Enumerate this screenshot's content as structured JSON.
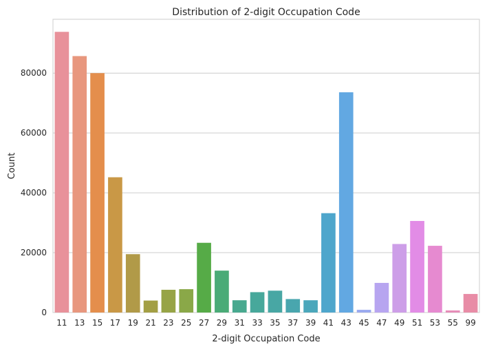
{
  "chart_data": {
    "type": "bar",
    "title": "Distribution of 2-digit Occupation Code",
    "xlabel": "2-digit Occupation Code",
    "ylabel": "Count",
    "ylim": [
      0,
      98000
    ],
    "yticks": [
      0,
      20000,
      40000,
      60000,
      80000
    ],
    "grid": "y",
    "categories": [
      "11",
      "13",
      "15",
      "17",
      "19",
      "21",
      "23",
      "25",
      "27",
      "29",
      "31",
      "33",
      "35",
      "37",
      "39",
      "41",
      "43",
      "45",
      "47",
      "49",
      "51",
      "53",
      "55",
      "99"
    ],
    "values": [
      93800,
      85700,
      80000,
      45200,
      19500,
      4000,
      7600,
      7800,
      23300,
      14000,
      4100,
      6800,
      7300,
      4500,
      4100,
      33200,
      73600,
      900,
      9900,
      22900,
      30600,
      22300,
      700,
      6200
    ],
    "colors": [
      "#e8919a",
      "#e8977e",
      "#e48e4c",
      "#c99846",
      "#b19a48",
      "#a39f44",
      "#97a446",
      "#8aa848",
      "#56ab47",
      "#4aab77",
      "#48a98f",
      "#47a89b",
      "#48a7a4",
      "#49a6ae",
      "#4ba7bb",
      "#4ea6cc",
      "#62a8e2",
      "#9aa9ef",
      "#b7a5f0",
      "#cd9ee8",
      "#e28ce6",
      "#e68ad0",
      "#e68db8",
      "#e88ca6"
    ]
  }
}
